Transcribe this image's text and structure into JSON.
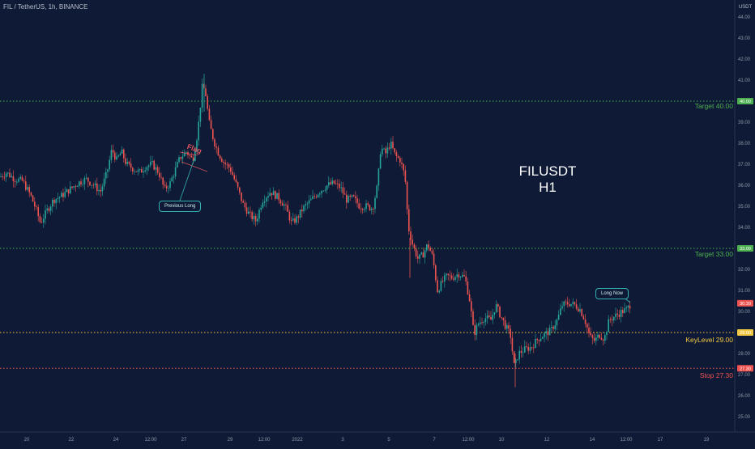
{
  "header": {
    "title": "FIL / TetherUS, 1h, BINANCE"
  },
  "annotations": {
    "big_title_line1": "FILUSDT",
    "big_title_line2": "H1",
    "previous_long": "Previous Long",
    "long_now": "Long Now",
    "flag": "Flag"
  },
  "colors": {
    "background": "#0f1b36",
    "up": "#26a69a",
    "down": "#ef5350",
    "target": "#4caf50",
    "keylevel": "#f2c744",
    "stop": "#ef5350",
    "callout_border": "#33b2b0"
  },
  "chart_data": {
    "type": "candlestick",
    "title": "FIL / TetherUS, 1h, BINANCE",
    "y_axis": {
      "unit": "USDT",
      "range": [
        24.0,
        45.0
      ],
      "ticks": [
        "44.00",
        "43.00",
        "42.00",
        "41.00",
        "40.00",
        "39.00",
        "38.00",
        "37.00",
        "36.00",
        "35.00",
        "34.00",
        "33.00",
        "32.00",
        "31.00",
        "30.00",
        "29.00",
        "28.00",
        "27.00",
        "26.00",
        "25.00"
      ]
    },
    "x_axis": {
      "ticks": [
        "20",
        "22",
        "24",
        "12:00",
        "27",
        "29",
        "12:00",
        "2022",
        "3",
        "5",
        "7",
        "12:00",
        "10",
        "12",
        "14",
        "12:00",
        "17",
        "19"
      ]
    },
    "levels": [
      {
        "name": "Target 40.00",
        "value": 40.0,
        "style": "dotted",
        "color": "#4caf50"
      },
      {
        "name": "Target 33.00",
        "value": 33.0,
        "style": "dotted",
        "color": "#4caf50"
      },
      {
        "name": "KeyLevel 29.00",
        "value": 29.0,
        "style": "dotted",
        "color": "#f2c744"
      },
      {
        "name": "Stop 27.30",
        "value": 27.3,
        "style": "dotted",
        "color": "#ef5350"
      }
    ],
    "price_tags": [
      {
        "label": "40.00",
        "value": 40.0,
        "color": "#4caf50"
      },
      {
        "label": "33.00",
        "value": 33.0,
        "color": "#4caf50"
      },
      {
        "label": "30.39",
        "value": 30.39,
        "color": "#ef5350"
      },
      {
        "label": "29.00",
        "value": 29.0,
        "color": "#f2c744"
      },
      {
        "label": "27.30",
        "value": 27.3,
        "color": "#ef5350"
      }
    ],
    "price_path": [
      [
        0,
        36.4
      ],
      [
        8,
        36.6
      ],
      [
        18,
        36.3
      ],
      [
        28,
        36.2
      ],
      [
        38,
        35.5
      ],
      [
        45,
        34.8
      ],
      [
        50,
        34.2
      ],
      [
        58,
        34.8
      ],
      [
        66,
        35.3
      ],
      [
        76,
        35.5
      ],
      [
        86,
        35.8
      ],
      [
        96,
        36.1
      ],
      [
        106,
        36.3
      ],
      [
        116,
        36.0
      ],
      [
        124,
        35.7
      ],
      [
        132,
        36.6
      ],
      [
        138,
        37.7
      ],
      [
        144,
        37.2
      ],
      [
        150,
        37.6
      ],
      [
        156,
        37.0
      ],
      [
        164,
        36.8
      ],
      [
        172,
        36.6
      ],
      [
        180,
        36.9
      ],
      [
        188,
        37.0
      ],
      [
        196,
        36.6
      ],
      [
        203,
        35.8
      ],
      [
        210,
        36.1
      ],
      [
        216,
        36.7
      ],
      [
        222,
        37.3
      ],
      [
        230,
        37.6
      ],
      [
        238,
        37.2
      ],
      [
        244,
        38.5
      ],
      [
        250,
        40.8
      ],
      [
        254,
        40.3
      ],
      [
        258,
        39.0
      ],
      [
        264,
        38.1
      ],
      [
        270,
        37.5
      ],
      [
        276,
        37.1
      ],
      [
        284,
        36.8
      ],
      [
        292,
        36.0
      ],
      [
        300,
        35.1
      ],
      [
        308,
        34.6
      ],
      [
        316,
        34.3
      ],
      [
        324,
        35.3
      ],
      [
        334,
        35.7
      ],
      [
        344,
        35.4
      ],
      [
        352,
        35.0
      ],
      [
        360,
        34.2
      ],
      [
        366,
        34.4
      ],
      [
        374,
        34.9
      ],
      [
        384,
        35.3
      ],
      [
        394,
        35.7
      ],
      [
        404,
        36.0
      ],
      [
        412,
        36.1
      ],
      [
        420,
        35.9
      ],
      [
        428,
        35.3
      ],
      [
        436,
        35.4
      ],
      [
        444,
        35.0
      ],
      [
        452,
        35.0
      ],
      [
        460,
        34.9
      ],
      [
        466,
        36.0
      ],
      [
        470,
        37.8
      ],
      [
        476,
        37.5
      ],
      [
        482,
        38.0
      ],
      [
        488,
        37.4
      ],
      [
        494,
        37.2
      ],
      [
        500,
        36.4
      ],
      [
        504,
        34.0
      ],
      [
        510,
        33.1
      ],
      [
        516,
        32.5
      ],
      [
        522,
        32.7
      ],
      [
        528,
        33.2
      ],
      [
        534,
        32.6
      ],
      [
        540,
        31.0
      ],
      [
        546,
        31.4
      ],
      [
        552,
        31.7
      ],
      [
        558,
        31.6
      ],
      [
        566,
        31.8
      ],
      [
        574,
        31.6
      ],
      [
        580,
        30.5
      ],
      [
        585,
        28.9
      ],
      [
        590,
        29.4
      ],
      [
        598,
        29.7
      ],
      [
        606,
        29.6
      ],
      [
        612,
        30.3
      ],
      [
        618,
        29.8
      ],
      [
        624,
        29.3
      ],
      [
        630,
        28.9
      ],
      [
        635,
        27.3
      ],
      [
        640,
        28.0
      ],
      [
        648,
        28.2
      ],
      [
        656,
        28.3
      ],
      [
        664,
        28.7
      ],
      [
        672,
        28.9
      ],
      [
        680,
        29.1
      ],
      [
        688,
        29.6
      ],
      [
        694,
        30.3
      ],
      [
        702,
        30.4
      ],
      [
        710,
        30.3
      ],
      [
        716,
        30.1
      ],
      [
        722,
        29.6
      ],
      [
        728,
        28.8
      ],
      [
        734,
        28.6
      ],
      [
        740,
        28.9
      ],
      [
        746,
        28.7
      ],
      [
        752,
        29.6
      ],
      [
        760,
        29.8
      ],
      [
        768,
        30.0
      ],
      [
        774,
        30.1
      ],
      [
        779,
        30.39
      ]
    ]
  }
}
